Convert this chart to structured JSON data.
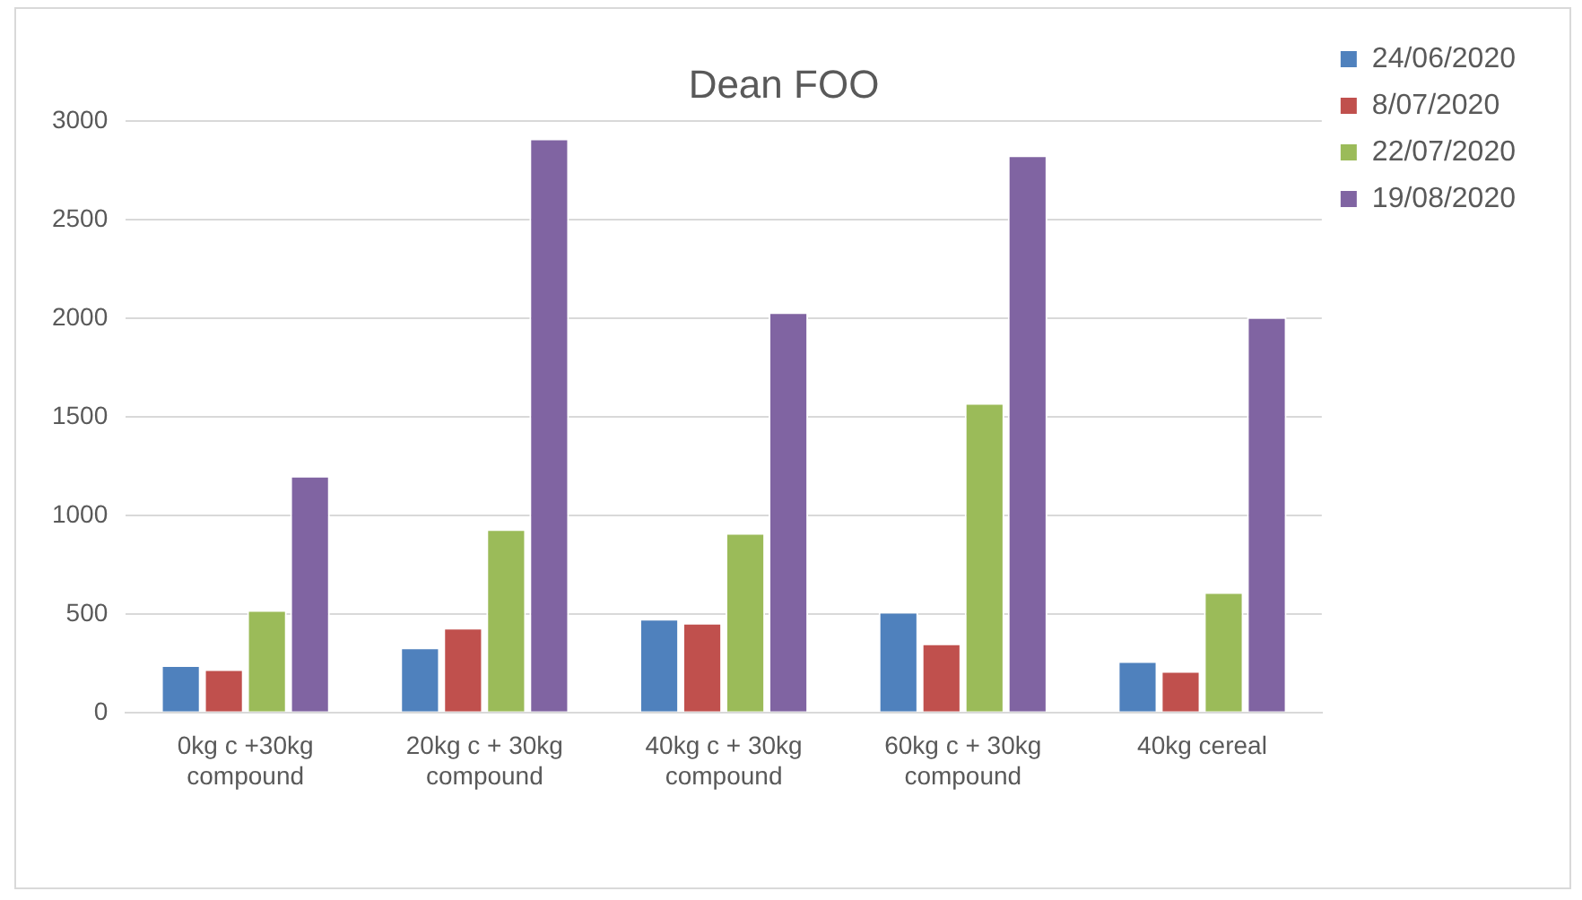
{
  "chart_data": {
    "type": "bar",
    "title": "Dean FOO",
    "categories": [
      "0kg c +30kg compound",
      "20kg c + 30kg compound",
      "40kg c + 30kg compound",
      "60kg c + 30kg compound",
      "40kg cereal"
    ],
    "series": [
      {
        "name": "24/06/2020",
        "color": "#4f81bd",
        "values": [
          240,
          330,
          475,
          510,
          260
        ]
      },
      {
        "name": "8/07/2020",
        "color": "#c0504d",
        "values": [
          220,
          430,
          455,
          350,
          210
        ]
      },
      {
        "name": "22/07/2020",
        "color": "#9bbb59",
        "values": [
          520,
          930,
          910,
          1570,
          610
        ]
      },
      {
        "name": "19/08/2020",
        "color": "#8064a2",
        "values": [
          1200,
          2910,
          2030,
          2825,
          2005
        ]
      }
    ],
    "ylim": [
      0,
      3000
    ],
    "yticks": [
      0,
      500,
      1000,
      1500,
      2000,
      2500,
      3000
    ],
    "grid": "y",
    "legend": "right"
  }
}
